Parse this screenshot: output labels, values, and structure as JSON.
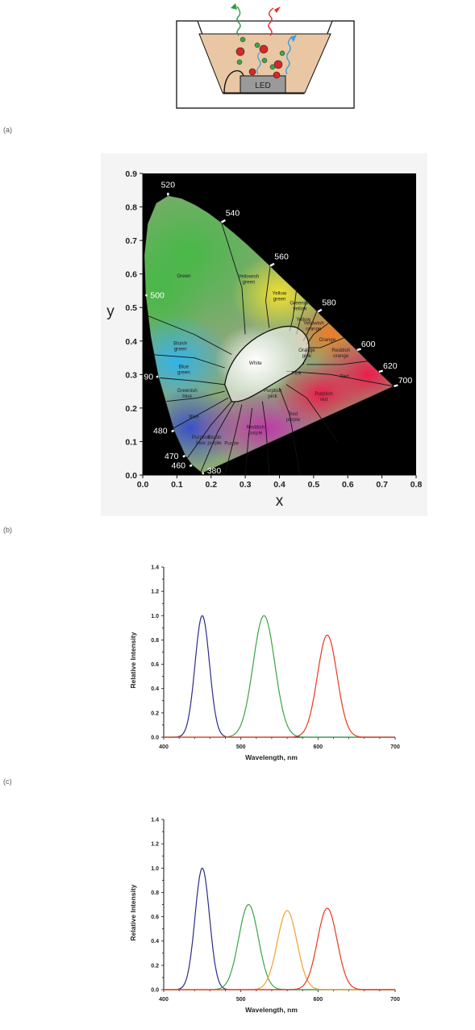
{
  "figure": {
    "panel_labels": [
      "(a)",
      "(b)",
      "(c)"
    ],
    "led_label": "LED"
  },
  "chart_data": [
    {
      "type": "scatter",
      "title": "",
      "xlabel": "x",
      "ylabel": "y",
      "xlim": [
        0.0,
        0.8
      ],
      "ylim": [
        0.0,
        0.9
      ],
      "xticks": [
        "0.0",
        "0.1",
        "0.2",
        "0.3",
        "0.4",
        "0.5",
        "0.6",
        "0.7",
        "0.8"
      ],
      "yticks": [
        "0.0",
        "0.1",
        "0.2",
        "0.3",
        "0.4",
        "0.5",
        "0.6",
        "0.7",
        "0.8",
        "0.9"
      ],
      "background": "#000000",
      "wavelength_marks": [
        {
          "label": "520",
          "x": 0.074,
          "y": 0.834
        },
        {
          "label": "540",
          "x": 0.23,
          "y": 0.754
        },
        {
          "label": "560",
          "x": 0.373,
          "y": 0.624
        },
        {
          "label": "580",
          "x": 0.512,
          "y": 0.487
        },
        {
          "label": "600",
          "x": 0.627,
          "y": 0.373
        },
        {
          "label": "620",
          "x": 0.691,
          "y": 0.308
        },
        {
          "label": "700",
          "x": 0.735,
          "y": 0.265
        },
        {
          "label": "500",
          "x": 0.008,
          "y": 0.538
        },
        {
          "label": "490",
          "x": 0.045,
          "y": 0.295
        },
        {
          "label": "480",
          "x": 0.091,
          "y": 0.133
        },
        {
          "label": "470",
          "x": 0.124,
          "y": 0.058
        },
        {
          "label": "460",
          "x": 0.144,
          "y": 0.03
        },
        {
          "label": "380",
          "x": 0.174,
          "y": 0.005
        }
      ],
      "region_labels": [
        {
          "label": "Green",
          "x": 0.12,
          "y": 0.59
        },
        {
          "label": "Yellowish green",
          "x": 0.31,
          "y": 0.58
        },
        {
          "label": "Yellow green",
          "x": 0.4,
          "y": 0.53
        },
        {
          "label": "Greenish yellow",
          "x": 0.46,
          "y": 0.5
        },
        {
          "label": "Yellow",
          "x": 0.47,
          "y": 0.46
        },
        {
          "label": "Yellowish orange",
          "x": 0.5,
          "y": 0.44
        },
        {
          "label": "Orange",
          "x": 0.54,
          "y": 0.4
        },
        {
          "label": "Reddish orange",
          "x": 0.58,
          "y": 0.36
        },
        {
          "label": "Orange pink",
          "x": 0.48,
          "y": 0.36
        },
        {
          "label": "Red",
          "x": 0.59,
          "y": 0.29
        },
        {
          "label": "Pink",
          "x": 0.45,
          "y": 0.3
        },
        {
          "label": "Purplish pink",
          "x": 0.38,
          "y": 0.24
        },
        {
          "label": "Purplish red",
          "x": 0.53,
          "y": 0.23
        },
        {
          "label": "Red purple",
          "x": 0.44,
          "y": 0.17
        },
        {
          "label": "Reddish purple",
          "x": 0.33,
          "y": 0.13
        },
        {
          "label": "Purple",
          "x": 0.26,
          "y": 0.09
        },
        {
          "label": "Bluish purple",
          "x": 0.21,
          "y": 0.1
        },
        {
          "label": "Purplish blue",
          "x": 0.17,
          "y": 0.1
        },
        {
          "label": "Blue",
          "x": 0.15,
          "y": 0.17
        },
        {
          "label": "Greenish blue",
          "x": 0.13,
          "y": 0.24
        },
        {
          "label": "Blue green",
          "x": 0.12,
          "y": 0.31
        },
        {
          "label": "Bluish green",
          "x": 0.11,
          "y": 0.38
        },
        {
          "label": "White",
          "x": 0.33,
          "y": 0.33
        }
      ]
    },
    {
      "type": "line",
      "title": "",
      "xlabel": "Wavelength, nm",
      "ylabel": "Relative Intensity",
      "xlim": [
        400,
        700
      ],
      "ylim": [
        0.0,
        1.4
      ],
      "xticks": [
        "400",
        "500",
        "600",
        "700"
      ],
      "yticks": [
        "0.0",
        "0.2",
        "0.4",
        "0.6",
        "0.8",
        "1.0",
        "1.2",
        "1.4"
      ],
      "series": [
        {
          "color": "#2b2c8c",
          "peak_nm": 450,
          "peak": 1.0,
          "fwhm_nm": 22
        },
        {
          "color": "#3aa445",
          "peak_nm": 530,
          "peak": 1.0,
          "fwhm_nm": 33
        },
        {
          "color": "#e8391c",
          "peak_nm": 612,
          "peak": 0.84,
          "fwhm_nm": 30
        }
      ]
    },
    {
      "type": "line",
      "title": "",
      "xlabel": "Wavelength, nm",
      "ylabel": "Relative Intensity",
      "xlim": [
        400,
        700
      ],
      "ylim": [
        0.0,
        1.4
      ],
      "xticks": [
        "400",
        "500",
        "600",
        "700"
      ],
      "yticks": [
        "0.0",
        "0.2",
        "0.4",
        "0.6",
        "0.8",
        "1.0",
        "1.2",
        "1.4"
      ],
      "series": [
        {
          "color": "#2b2c8c",
          "peak_nm": 450,
          "peak": 1.0,
          "fwhm_nm": 22
        },
        {
          "color": "#3aa445",
          "peak_nm": 510,
          "peak": 0.7,
          "fwhm_nm": 30
        },
        {
          "color": "#f0a030",
          "peak_nm": 560,
          "peak": 0.65,
          "fwhm_nm": 30
        },
        {
          "color": "#e8391c",
          "peak_nm": 612,
          "peak": 0.67,
          "fwhm_nm": 30
        }
      ]
    }
  ]
}
